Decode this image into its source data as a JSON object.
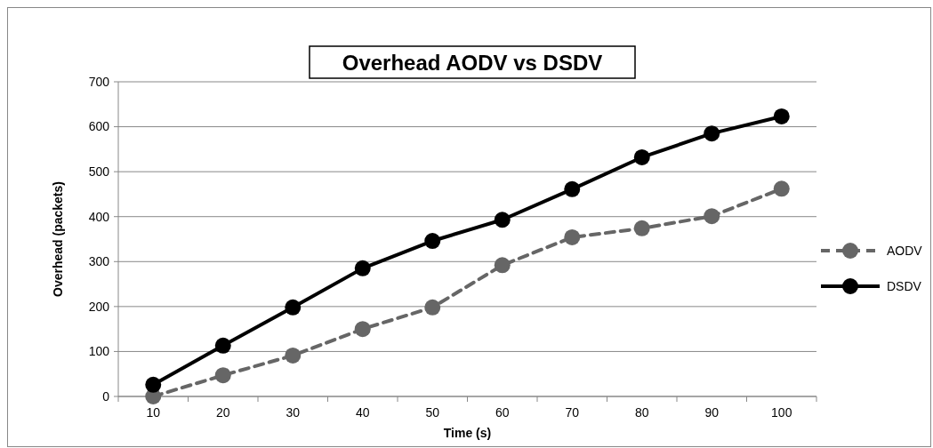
{
  "chart_data": {
    "type": "line",
    "title": "Overhead AODV vs DSDV",
    "xlabel": "Time (s)",
    "ylabel": "Overhead (packets)",
    "categories": [
      "10",
      "20",
      "30",
      "40",
      "50",
      "60",
      "70",
      "80",
      "90",
      "100"
    ],
    "series": [
      {
        "name": "AODV",
        "color": "#666666",
        "line_style": "dashed",
        "values": [
          0,
          47,
          91,
          150,
          198,
          292,
          354,
          374,
          401,
          462
        ]
      },
      {
        "name": "DSDV",
        "color": "#000000",
        "line_style": "solid",
        "values": [
          26,
          113,
          198,
          285,
          346,
          393,
          461,
          532,
          585,
          623
        ]
      }
    ],
    "ylim": [
      0,
      700
    ],
    "yticks": [
      0,
      100,
      200,
      300,
      400,
      500,
      600,
      700
    ],
    "grid": "y",
    "legend": "right",
    "marker": "circle"
  }
}
